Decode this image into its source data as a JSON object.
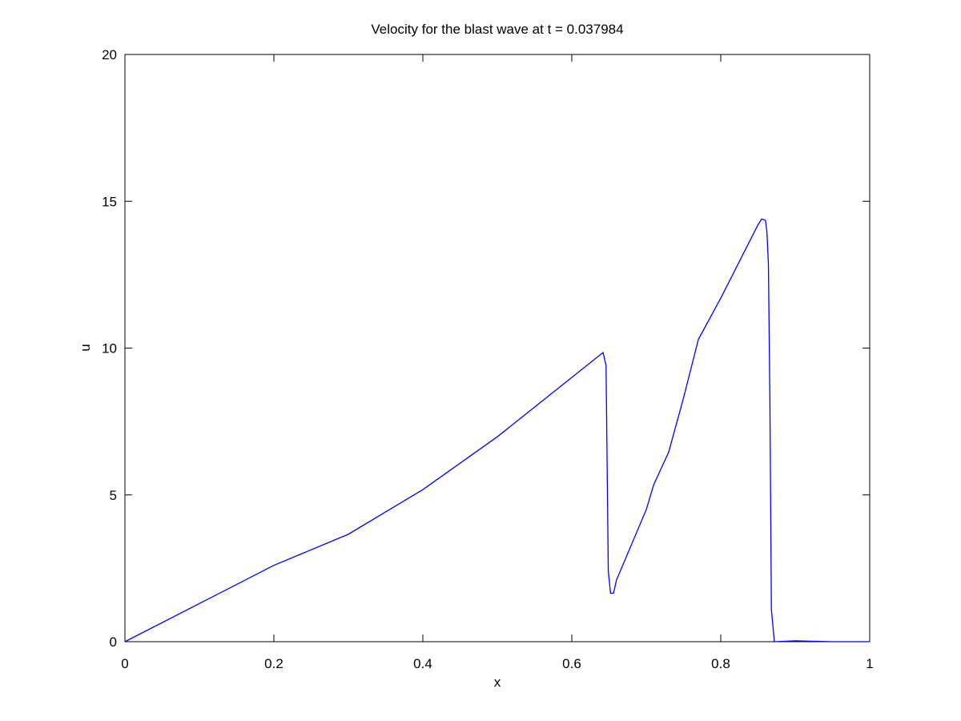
{
  "chart_data": {
    "type": "line",
    "title": "Velocity for the blast wave at t = 0.037984",
    "x_label": "x",
    "y_label": "u",
    "x": [
      0,
      0.1,
      0.2,
      0.3,
      0.4,
      0.5,
      0.6,
      0.642,
      0.646,
      0.649,
      0.652,
      0.656,
      0.66,
      0.7,
      0.71,
      0.72,
      0.73,
      0.75,
      0.77,
      0.8,
      0.82,
      0.85,
      0.855,
      0.86,
      0.862,
      0.864,
      0.866,
      0.868,
      0.872,
      0.9,
      0.95,
      1
    ],
    "series": [
      {
        "color": "#0000ff",
        "values": [
          0,
          1.3,
          2.6,
          3.66,
          5.18,
          6.98,
          9.0,
          9.85,
          9.4,
          2.4,
          1.65,
          1.65,
          2.1,
          4.5,
          5.35,
          5.9,
          6.45,
          8.3,
          10.3,
          11.7,
          12.7,
          14.2,
          14.4,
          14.35,
          13.95,
          12.85,
          8.2,
          1.1,
          0,
          0.03,
          0,
          0
        ]
      }
    ],
    "xlim": [
      0,
      1
    ],
    "ylim": [
      0,
      20
    ],
    "xticks": [
      0,
      0.2,
      0.4,
      0.6,
      0.8,
      1
    ],
    "yticks": [
      0,
      5,
      10,
      15,
      20
    ],
    "grid": false
  }
}
